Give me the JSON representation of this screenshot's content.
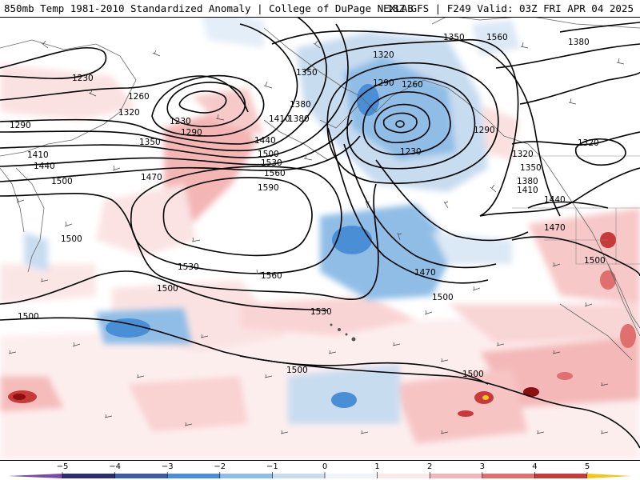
{
  "header": {
    "title_left": "850mb Temp 1981-2010 Standardized Anomaly | College of DuPage NEXLAB",
    "title_right": "18Z GFS | F249 Valid: 03Z FRI APR 04 2025"
  },
  "contour_labels": [
    {
      "text": "1230"
    },
    {
      "text": "1260"
    },
    {
      "text": "1290"
    },
    {
      "text": "1320"
    },
    {
      "text": "1350"
    },
    {
      "text": "1380"
    },
    {
      "text": "1410"
    },
    {
      "text": "1440"
    },
    {
      "text": "1470"
    },
    {
      "text": "1500"
    },
    {
      "text": "1530"
    },
    {
      "text": "1560"
    },
    {
      "text": "1590"
    },
    {
      "text": "1230"
    },
    {
      "text": "1290"
    },
    {
      "text": "1320"
    },
    {
      "text": "1350"
    },
    {
      "text": "1380"
    },
    {
      "text": "1410"
    },
    {
      "text": "1440"
    },
    {
      "text": "1500"
    },
    {
      "text": "1530"
    },
    {
      "text": "1560"
    },
    {
      "text": "1230"
    },
    {
      "text": "1260"
    },
    {
      "text": "1290"
    },
    {
      "text": "1320"
    },
    {
      "text": "1350"
    },
    {
      "text": "1380"
    },
    {
      "text": "1410"
    },
    {
      "text": "1440"
    },
    {
      "text": "1470"
    },
    {
      "text": "1500"
    },
    {
      "text": "1500"
    },
    {
      "text": "1500"
    },
    {
      "text": "1500"
    },
    {
      "text": "1530"
    },
    {
      "text": "1560"
    },
    {
      "text": "1470"
    },
    {
      "text": "1500"
    },
    {
      "text": "1500"
    },
    {
      "text": "1290"
    },
    {
      "text": "1320"
    },
    {
      "text": "1380"
    },
    {
      "text": "1320"
    },
    {
      "text": "1350"
    },
    {
      "text": "1500"
    }
  ],
  "colorbar": {
    "ticks": [
      "−5",
      "−4",
      "−3",
      "−2",
      "−1",
      "0",
      "1",
      "2",
      "3",
      "4",
      "5"
    ],
    "colors": [
      "#2a2d6e",
      "#3c5aa8",
      "#4a8fd6",
      "#8fbde6",
      "#c8dcf0",
      "#eef3fa",
      "#fbe8e8",
      "#f2b8b8",
      "#e07070",
      "#c83a3a",
      "#8c1010",
      "#f5c518"
    ],
    "min_color": "#7a4aa8",
    "max_color": "#f5c518"
  }
}
